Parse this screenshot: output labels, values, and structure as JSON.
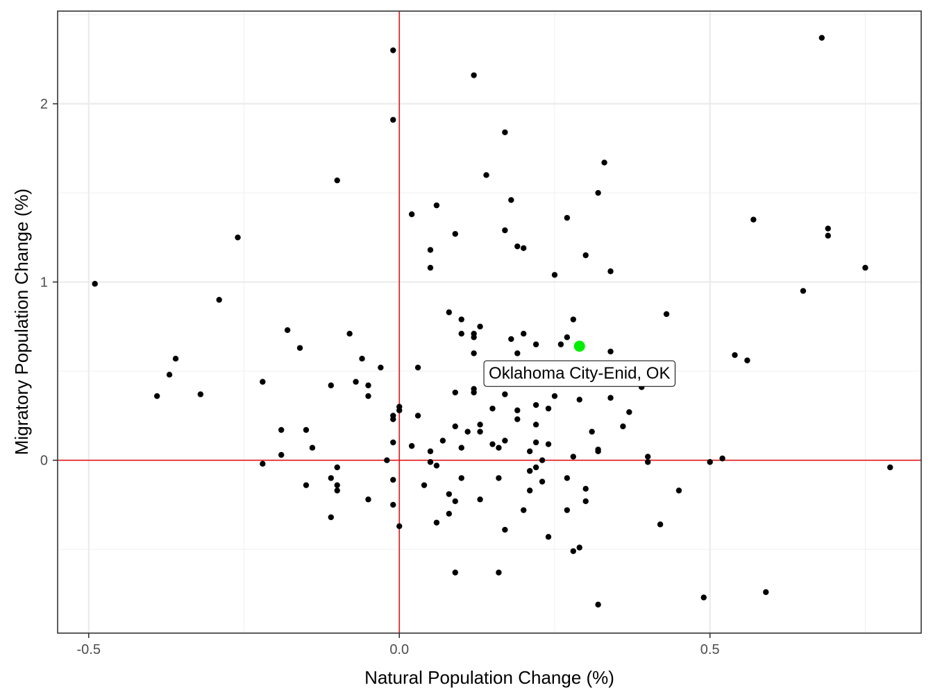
{
  "chart_data": {
    "type": "scatter",
    "xlabel": "Natural Population Change (%)",
    "ylabel": "Migratory Population Change (%)",
    "xlim": [
      -0.55,
      0.84
    ],
    "ylim": [
      -0.97,
      2.52
    ],
    "x_ticks": [
      -0.5,
      0.0,
      0.5
    ],
    "x_tick_labels": [
      "-0.5",
      "0.0",
      "0.5"
    ],
    "y_ticks": [
      0,
      1,
      2
    ],
    "y_tick_labels": [
      "0",
      "1",
      "2"
    ],
    "grid": true,
    "reference_lines": {
      "x": 0,
      "y": 0,
      "color": "#e41a1c"
    },
    "point_color": "#000000",
    "highlight": {
      "label": "Oklahoma City-Enid, OK",
      "x": 0.29,
      "y": 0.64,
      "color": "#00ee00"
    },
    "points": [
      {
        "x": -0.49,
        "y": 0.99
      },
      {
        "x": -0.39,
        "y": 0.36
      },
      {
        "x": -0.37,
        "y": 0.48
      },
      {
        "x": -0.36,
        "y": 0.57
      },
      {
        "x": -0.32,
        "y": 0.37
      },
      {
        "x": -0.29,
        "y": 0.9
      },
      {
        "x": -0.26,
        "y": 1.25
      },
      {
        "x": -0.22,
        "y": 0.44
      },
      {
        "x": -0.22,
        "y": -0.02
      },
      {
        "x": -0.19,
        "y": 0.17
      },
      {
        "x": -0.19,
        "y": 0.03
      },
      {
        "x": -0.18,
        "y": 0.73
      },
      {
        "x": -0.16,
        "y": 0.63
      },
      {
        "x": -0.15,
        "y": 0.17
      },
      {
        "x": -0.15,
        "y": -0.14
      },
      {
        "x": -0.14,
        "y": 0.07
      },
      {
        "x": -0.11,
        "y": 0.42
      },
      {
        "x": -0.11,
        "y": -0.1
      },
      {
        "x": -0.11,
        "y": -0.32
      },
      {
        "x": -0.1,
        "y": 1.57
      },
      {
        "x": -0.1,
        "y": -0.04
      },
      {
        "x": -0.1,
        "y": -0.14
      },
      {
        "x": -0.1,
        "y": -0.17
      },
      {
        "x": -0.08,
        "y": 0.71
      },
      {
        "x": -0.07,
        "y": 0.44
      },
      {
        "x": -0.06,
        "y": 0.57
      },
      {
        "x": -0.05,
        "y": 0.42
      },
      {
        "x": -0.05,
        "y": 0.36
      },
      {
        "x": -0.05,
        "y": -0.22
      },
      {
        "x": -0.03,
        "y": 0.52
      },
      {
        "x": -0.02,
        "y": 0.0
      },
      {
        "x": -0.01,
        "y": 2.3
      },
      {
        "x": -0.01,
        "y": 1.91
      },
      {
        "x": -0.01,
        "y": 0.25
      },
      {
        "x": -0.01,
        "y": 0.23
      },
      {
        "x": -0.01,
        "y": 0.1
      },
      {
        "x": -0.01,
        "y": -0.11
      },
      {
        "x": -0.01,
        "y": -0.25
      },
      {
        "x": 0.0,
        "y": 0.3
      },
      {
        "x": 0.0,
        "y": 0.28
      },
      {
        "x": 0.0,
        "y": -0.37
      },
      {
        "x": 0.02,
        "y": 1.38
      },
      {
        "x": 0.02,
        "y": 0.08
      },
      {
        "x": 0.03,
        "y": 0.52
      },
      {
        "x": 0.03,
        "y": 0.25
      },
      {
        "x": 0.04,
        "y": -0.14
      },
      {
        "x": 0.05,
        "y": 1.18
      },
      {
        "x": 0.05,
        "y": 1.08
      },
      {
        "x": 0.05,
        "y": 0.05
      },
      {
        "x": 0.05,
        "y": -0.01
      },
      {
        "x": 0.06,
        "y": 1.43
      },
      {
        "x": 0.06,
        "y": -0.03
      },
      {
        "x": 0.06,
        "y": -0.35
      },
      {
        "x": 0.07,
        "y": 0.11
      },
      {
        "x": 0.08,
        "y": 0.83
      },
      {
        "x": 0.08,
        "y": -0.19
      },
      {
        "x": 0.08,
        "y": -0.3
      },
      {
        "x": 0.09,
        "y": 1.27
      },
      {
        "x": 0.09,
        "y": 0.38
      },
      {
        "x": 0.09,
        "y": 0.19
      },
      {
        "x": 0.09,
        "y": -0.23
      },
      {
        "x": 0.09,
        "y": -0.63
      },
      {
        "x": 0.1,
        "y": 0.79
      },
      {
        "x": 0.1,
        "y": 0.71
      },
      {
        "x": 0.1,
        "y": 0.07
      },
      {
        "x": 0.1,
        "y": -0.1
      },
      {
        "x": 0.11,
        "y": 0.16
      },
      {
        "x": 0.12,
        "y": 2.16
      },
      {
        "x": 0.12,
        "y": 0.71
      },
      {
        "x": 0.12,
        "y": 0.69
      },
      {
        "x": 0.12,
        "y": 0.6
      },
      {
        "x": 0.12,
        "y": 0.4
      },
      {
        "x": 0.12,
        "y": 0.38
      },
      {
        "x": 0.13,
        "y": 0.75
      },
      {
        "x": 0.13,
        "y": 0.2
      },
      {
        "x": 0.13,
        "y": 0.16
      },
      {
        "x": 0.13,
        "y": -0.22
      },
      {
        "x": 0.14,
        "y": 1.6
      },
      {
        "x": 0.15,
        "y": 0.29
      },
      {
        "x": 0.15,
        "y": 0.09
      },
      {
        "x": 0.16,
        "y": 0.07
      },
      {
        "x": 0.16,
        "y": -0.1
      },
      {
        "x": 0.16,
        "y": -0.63
      },
      {
        "x": 0.17,
        "y": 1.84
      },
      {
        "x": 0.17,
        "y": 1.29
      },
      {
        "x": 0.17,
        "y": 0.37
      },
      {
        "x": 0.17,
        "y": 0.11
      },
      {
        "x": 0.17,
        "y": -0.39
      },
      {
        "x": 0.18,
        "y": 1.46
      },
      {
        "x": 0.18,
        "y": 0.68
      },
      {
        "x": 0.19,
        "y": 1.2
      },
      {
        "x": 0.19,
        "y": 0.6
      },
      {
        "x": 0.19,
        "y": 0.28
      },
      {
        "x": 0.19,
        "y": 0.23
      },
      {
        "x": 0.2,
        "y": 1.19
      },
      {
        "x": 0.2,
        "y": 0.71
      },
      {
        "x": 0.2,
        "y": -0.28
      },
      {
        "x": 0.21,
        "y": 0.05
      },
      {
        "x": 0.21,
        "y": -0.06
      },
      {
        "x": 0.21,
        "y": -0.17
      },
      {
        "x": 0.22,
        "y": 0.65
      },
      {
        "x": 0.22,
        "y": 0.31
      },
      {
        "x": 0.22,
        "y": 0.2
      },
      {
        "x": 0.22,
        "y": 0.1
      },
      {
        "x": 0.22,
        "y": -0.04
      },
      {
        "x": 0.23,
        "y": 0.0
      },
      {
        "x": 0.23,
        "y": -0.12
      },
      {
        "x": 0.24,
        "y": 0.29
      },
      {
        "x": 0.24,
        "y": 0.09
      },
      {
        "x": 0.24,
        "y": -0.43
      },
      {
        "x": 0.25,
        "y": 1.04
      },
      {
        "x": 0.25,
        "y": 0.36
      },
      {
        "x": 0.26,
        "y": 0.65
      },
      {
        "x": 0.27,
        "y": 1.36
      },
      {
        "x": 0.27,
        "y": 0.69
      },
      {
        "x": 0.27,
        "y": -0.1
      },
      {
        "x": 0.27,
        "y": -0.28
      },
      {
        "x": 0.28,
        "y": 0.79
      },
      {
        "x": 0.28,
        "y": 0.02
      },
      {
        "x": 0.28,
        "y": -0.51
      },
      {
        "x": 0.29,
        "y": 0.34
      },
      {
        "x": 0.29,
        "y": -0.49
      },
      {
        "x": 0.3,
        "y": 1.15
      },
      {
        "x": 0.3,
        "y": -0.16
      },
      {
        "x": 0.3,
        "y": -0.23
      },
      {
        "x": 0.31,
        "y": 0.16
      },
      {
        "x": 0.32,
        "y": 1.5
      },
      {
        "x": 0.32,
        "y": 0.06
      },
      {
        "x": 0.32,
        "y": 0.05
      },
      {
        "x": 0.32,
        "y": -0.81
      },
      {
        "x": 0.33,
        "y": 1.67
      },
      {
        "x": 0.34,
        "y": 1.06
      },
      {
        "x": 0.34,
        "y": 0.61
      },
      {
        "x": 0.34,
        "y": 0.35
      },
      {
        "x": 0.36,
        "y": 0.19
      },
      {
        "x": 0.37,
        "y": 0.27
      },
      {
        "x": 0.39,
        "y": 0.41
      },
      {
        "x": 0.4,
        "y": 0.02
      },
      {
        "x": 0.4,
        "y": -0.01
      },
      {
        "x": 0.42,
        "y": -0.36
      },
      {
        "x": 0.43,
        "y": 0.82
      },
      {
        "x": 0.45,
        "y": -0.17
      },
      {
        "x": 0.49,
        "y": -0.77
      },
      {
        "x": 0.5,
        "y": -0.01
      },
      {
        "x": 0.52,
        "y": 0.01
      },
      {
        "x": 0.54,
        "y": 0.59
      },
      {
        "x": 0.56,
        "y": 0.56
      },
      {
        "x": 0.57,
        "y": 1.35
      },
      {
        "x": 0.59,
        "y": -0.74
      },
      {
        "x": 0.65,
        "y": 0.95
      },
      {
        "x": 0.68,
        "y": 2.37
      },
      {
        "x": 0.69,
        "y": 1.3
      },
      {
        "x": 0.69,
        "y": 1.26
      },
      {
        "x": 0.75,
        "y": 1.08
      },
      {
        "x": 0.79,
        "y": -0.04
      }
    ]
  }
}
